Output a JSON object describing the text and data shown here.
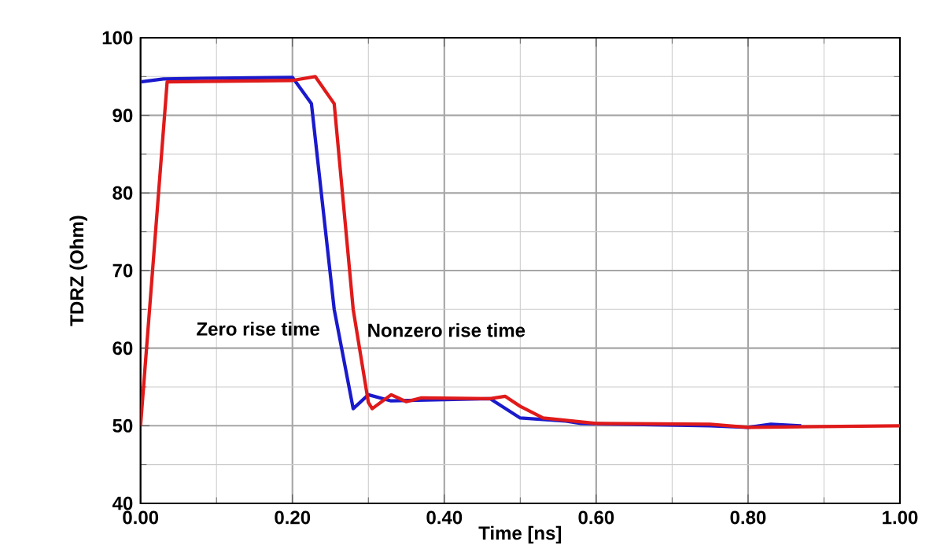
{
  "chart_data": {
    "type": "line",
    "xlabel": "Time [ns]",
    "ylabel": "TDRZ (Ohm)",
    "xlim": [
      0,
      1
    ],
    "ylim": [
      40,
      100
    ],
    "xticks": [
      {
        "value": 0,
        "label": "0.00"
      },
      {
        "value": 0.2,
        "label": "0.20"
      },
      {
        "value": 0.4,
        "label": "0.40"
      },
      {
        "value": 0.6,
        "label": "0.60"
      },
      {
        "value": 0.8,
        "label": "0.80"
      },
      {
        "value": 1,
        "label": "1.00"
      }
    ],
    "yticks": [
      40,
      50,
      60,
      70,
      80,
      90,
      100
    ],
    "grid": true,
    "marker": "none",
    "line_style": "solid",
    "annotations": [
      "Zero rise time",
      "Nonzero rise time"
    ],
    "series": [
      {
        "color": "#1a1acc",
        "x": [
          0,
          0.03,
          0.2,
          0.225,
          0.255,
          0.28,
          0.3,
          0.33,
          0.46,
          0.5,
          0.56,
          0.58,
          0.75,
          0.8,
          0.83,
          0.87
        ],
        "values": [
          94.3,
          94.7,
          94.9,
          91.5,
          65,
          52.2,
          54,
          53.2,
          53.5,
          51,
          50.6,
          50.3,
          50,
          49.8,
          50.2,
          50
        ]
      },
      {
        "color": "#e01a1a",
        "x": [
          0,
          0.035,
          0.2,
          0.23,
          0.255,
          0.28,
          0.3,
          0.305,
          0.33,
          0.35,
          0.37,
          0.46,
          0.48,
          0.5,
          0.53,
          0.57,
          0.6,
          0.75,
          0.8,
          1.0
        ],
        "values": [
          50,
          94.3,
          94.5,
          95,
          91.5,
          65,
          53,
          52.2,
          54,
          53.1,
          53.6,
          53.5,
          53.8,
          52.5,
          51,
          50.6,
          50.3,
          50.2,
          49.8,
          50
        ]
      }
    ]
  }
}
